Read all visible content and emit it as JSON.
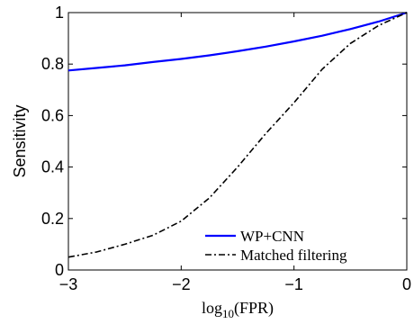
{
  "chart_data": {
    "type": "line",
    "xlabel": "log10(FPR)",
    "xlabel_parts": {
      "base": "log",
      "sub": "10",
      "arg": "(FPR)"
    },
    "ylabel": "Sensitivity",
    "xlim": [
      -3,
      0
    ],
    "ylim": [
      0,
      1
    ],
    "x_ticks": [
      -3,
      -2,
      -1,
      0
    ],
    "x_tick_labels": [
      "−3",
      "−2",
      "−1",
      "0"
    ],
    "y_ticks": [
      0,
      0.2,
      0.4,
      0.6,
      0.8,
      1
    ],
    "y_tick_labels": [
      "0",
      "0.2",
      "0.4",
      "0.6",
      "0.8",
      "1"
    ],
    "grid": false,
    "legend_position": "bottom-right",
    "series": [
      {
        "name": "WP+CNN",
        "color": "#0000ff",
        "line_style": "solid",
        "x": [
          -3.0,
          -2.75,
          -2.5,
          -2.25,
          -2.0,
          -1.75,
          -1.5,
          -1.25,
          -1.0,
          -0.75,
          -0.5,
          -0.25,
          0.0
        ],
        "y": [
          0.775,
          0.785,
          0.795,
          0.808,
          0.82,
          0.834,
          0.85,
          0.868,
          0.888,
          0.91,
          0.936,
          0.965,
          1.0
        ]
      },
      {
        "name": "Matched filtering",
        "color": "#000000",
        "line_style": "dashdot",
        "x": [
          -3.0,
          -2.75,
          -2.5,
          -2.25,
          -2.0,
          -1.75,
          -1.5,
          -1.25,
          -1.0,
          -0.75,
          -0.5,
          -0.25,
          0.0
        ],
        "y": [
          0.05,
          0.07,
          0.1,
          0.135,
          0.19,
          0.28,
          0.4,
          0.53,
          0.65,
          0.78,
          0.88,
          0.95,
          1.0
        ]
      }
    ]
  }
}
